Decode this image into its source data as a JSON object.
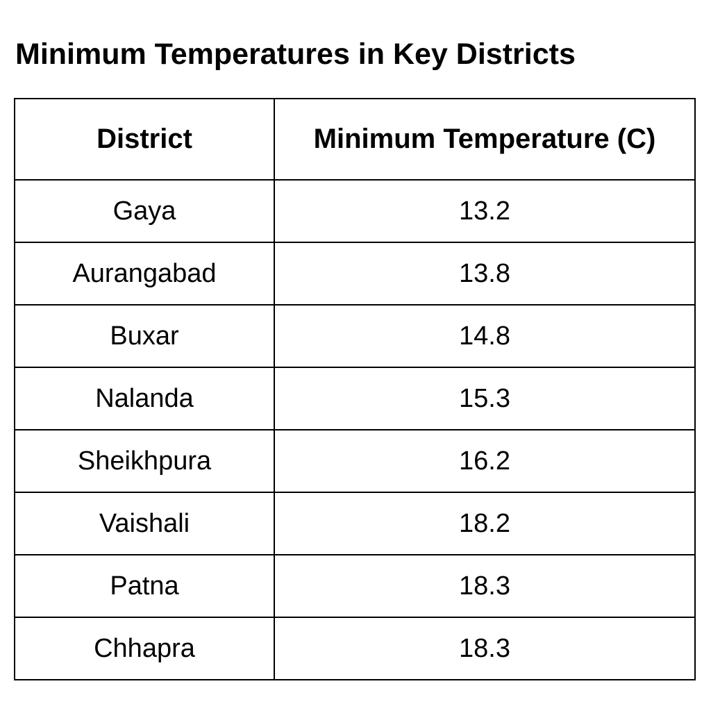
{
  "header": {
    "title": "Minimum Temperatures in Key Districts"
  },
  "table": {
    "columns": [
      "District",
      "Minimum Temperature (C)"
    ],
    "rows": [
      [
        "Gaya",
        13.2
      ],
      [
        "Aurangabad",
        13.8
      ],
      [
        "Buxar",
        14.8
      ],
      [
        "Nalanda",
        15.3
      ],
      [
        "Sheikhpura",
        16.2
      ],
      [
        "Vaishali",
        18.2
      ],
      [
        "Patna",
        18.3
      ],
      [
        "Chhapra",
        18.3
      ]
    ]
  }
}
